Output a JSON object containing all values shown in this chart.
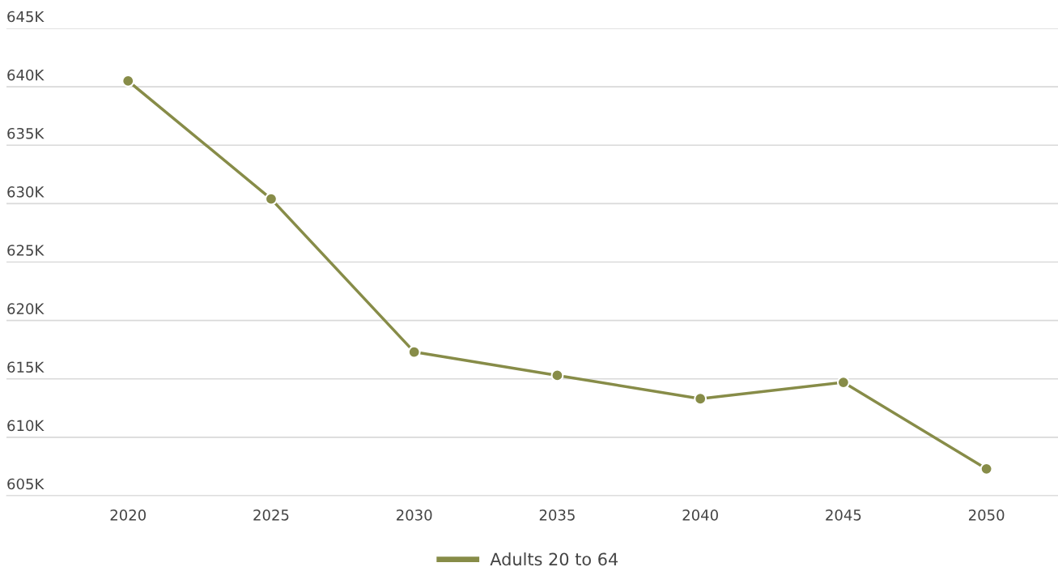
{
  "chart_data": {
    "type": "line",
    "categories": [
      "2020",
      "2025",
      "2030",
      "2035",
      "2040",
      "2045",
      "2050"
    ],
    "series": [
      {
        "name": "Adults 20 to 64",
        "color": "#878c48",
        "values": [
          640500,
          630400,
          617300,
          615300,
          613300,
          614700,
          607300
        ]
      }
    ],
    "ylim": [
      605000,
      645000
    ],
    "yticks": [
      {
        "value": 605000,
        "label": "605K"
      },
      {
        "value": 610000,
        "label": "610K"
      },
      {
        "value": 615000,
        "label": "615K"
      },
      {
        "value": 620000,
        "label": "620K"
      },
      {
        "value": 625000,
        "label": "625K"
      },
      {
        "value": 630000,
        "label": "630K"
      },
      {
        "value": 635000,
        "label": "635K"
      },
      {
        "value": 640000,
        "label": "640K"
      },
      {
        "value": 645000,
        "label": "645K"
      }
    ],
    "grid": "y",
    "legend": "bottom",
    "marker": "circle",
    "line_style": "solid"
  }
}
